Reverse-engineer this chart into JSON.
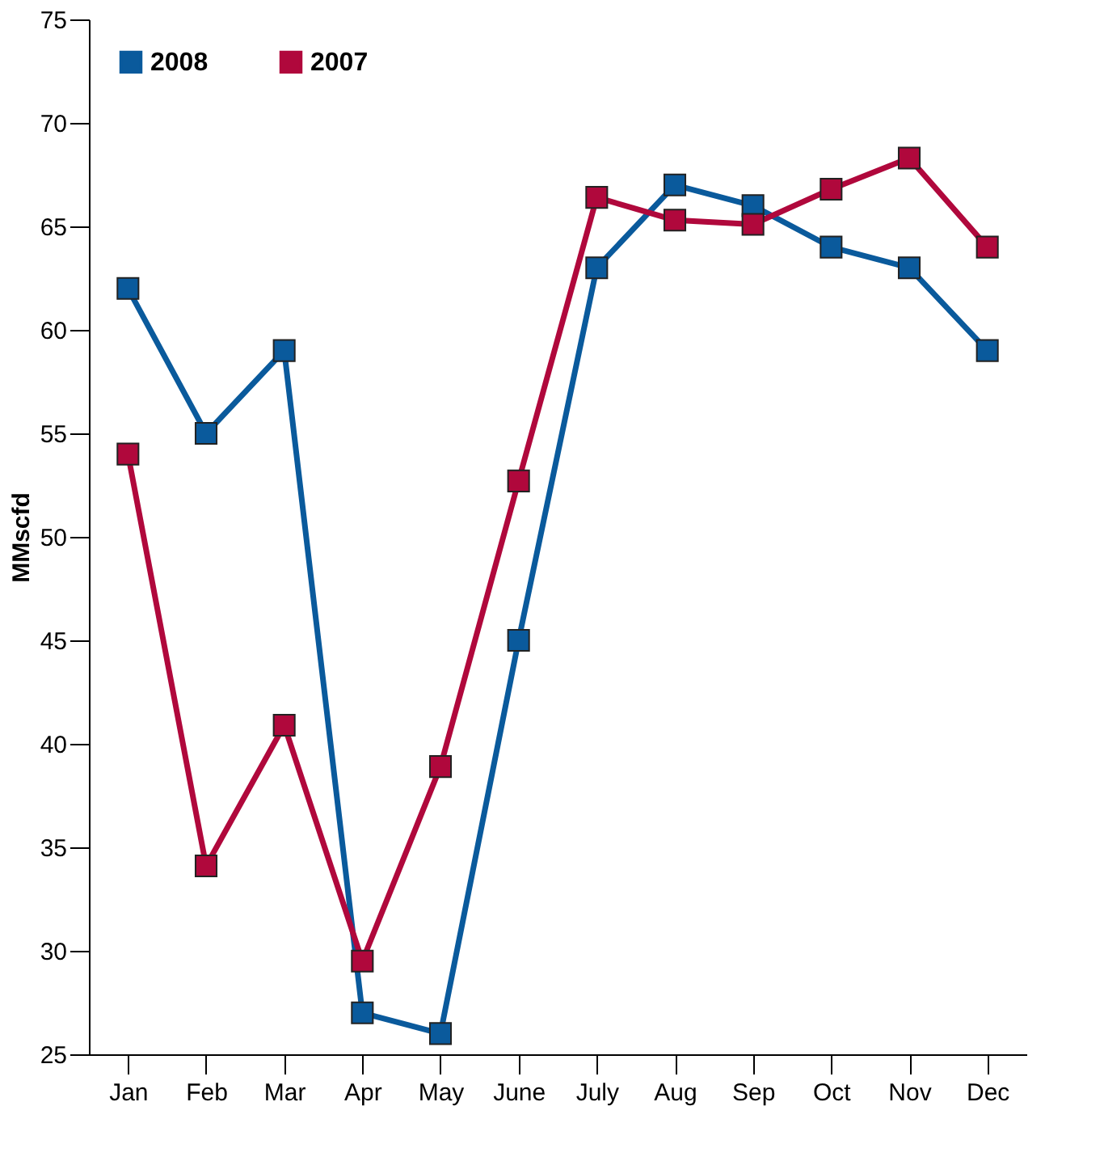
{
  "chart_data": {
    "type": "line",
    "ylabel": "MMscfd",
    "categories": [
      "Jan",
      "Feb",
      "Mar",
      "Apr",
      "May",
      "June",
      "July",
      "Aug",
      "Sep",
      "Oct",
      "Nov",
      "Dec"
    ],
    "series": [
      {
        "name": "2008",
        "color": "#0a5a9c",
        "values": [
          62,
          55,
          59,
          27,
          26,
          45,
          63,
          67,
          66,
          64,
          63,
          59
        ]
      },
      {
        "name": "2007",
        "color": "#b0083c",
        "values": [
          54,
          34.1,
          40.9,
          29.5,
          38.9,
          52.7,
          66.4,
          65.3,
          65.1,
          66.8,
          68.3,
          64
        ]
      }
    ],
    "ylim": [
      25,
      75
    ],
    "yticks": [
      25,
      30,
      35,
      40,
      45,
      50,
      55,
      60,
      65,
      70,
      75
    ],
    "grid": false,
    "legend": "top left",
    "marker": "square",
    "line_style": "solid"
  }
}
